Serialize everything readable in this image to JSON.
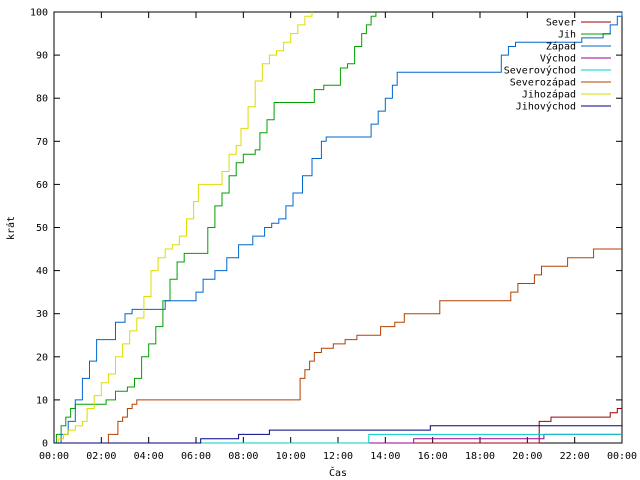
{
  "chart_data": {
    "type": "line",
    "title": "",
    "xlabel": "Čas",
    "ylabel": "krát",
    "xlim": [
      0,
      24
    ],
    "ylim": [
      0,
      100
    ],
    "x_ticks": [
      "00:00",
      "02:00",
      "04:00",
      "06:00",
      "08:00",
      "10:00",
      "12:00",
      "14:00",
      "16:00",
      "18:00",
      "20:00",
      "22:00",
      "00:00"
    ],
    "y_ticks": [
      0,
      10,
      20,
      30,
      40,
      50,
      60,
      70,
      80,
      90,
      100
    ],
    "grid": false,
    "legend_position": "top-right",
    "series": [
      {
        "name": "Sever",
        "color": "#a00000",
        "points": [
          [
            0,
            0
          ],
          [
            20.5,
            0
          ],
          [
            20.5,
            5
          ],
          [
            21,
            5
          ],
          [
            21,
            6
          ],
          [
            23.5,
            6
          ],
          [
            23.5,
            7
          ],
          [
            23.8,
            7
          ],
          [
            23.8,
            8
          ],
          [
            24,
            8
          ]
        ]
      },
      {
        "name": "Jih",
        "color": "#00a000",
        "points": [
          [
            0,
            0
          ],
          [
            0.1,
            2
          ],
          [
            0.3,
            4
          ],
          [
            0.5,
            6
          ],
          [
            0.7,
            8
          ],
          [
            0.9,
            9
          ],
          [
            1.8,
            9
          ],
          [
            2.2,
            10
          ],
          [
            2.6,
            12
          ],
          [
            3.1,
            13
          ],
          [
            3.4,
            15
          ],
          [
            3.7,
            20
          ],
          [
            4.0,
            23
          ],
          [
            4.3,
            27
          ],
          [
            4.6,
            33
          ],
          [
            4.9,
            38
          ],
          [
            5.2,
            42
          ],
          [
            5.5,
            44
          ],
          [
            6.3,
            44
          ],
          [
            6.5,
            50
          ],
          [
            6.8,
            55
          ],
          [
            7.1,
            58
          ],
          [
            7.4,
            62
          ],
          [
            7.7,
            65
          ],
          [
            8.0,
            67
          ],
          [
            8.5,
            68
          ],
          [
            8.7,
            72
          ],
          [
            9.0,
            75
          ],
          [
            9.3,
            79
          ],
          [
            10.8,
            79
          ],
          [
            11.0,
            82
          ],
          [
            11.4,
            83
          ],
          [
            11.8,
            83
          ],
          [
            12.1,
            87
          ],
          [
            12.4,
            88
          ],
          [
            12.7,
            92
          ],
          [
            13.0,
            95
          ],
          [
            13.2,
            97
          ],
          [
            13.4,
            99
          ],
          [
            13.6,
            100
          ]
        ]
      },
      {
        "name": "Západ",
        "color": "#0066cc",
        "points": [
          [
            0,
            0
          ],
          [
            0.3,
            2
          ],
          [
            0.6,
            5
          ],
          [
            0.9,
            10
          ],
          [
            1.2,
            15
          ],
          [
            1.5,
            19
          ],
          [
            1.8,
            24
          ],
          [
            2.3,
            24
          ],
          [
            2.6,
            28
          ],
          [
            3.0,
            30
          ],
          [
            3.3,
            31
          ],
          [
            4.5,
            31
          ],
          [
            4.7,
            33
          ],
          [
            5.8,
            33
          ],
          [
            6.0,
            35
          ],
          [
            6.3,
            38
          ],
          [
            6.8,
            40
          ],
          [
            7.3,
            43
          ],
          [
            7.8,
            46
          ],
          [
            8.4,
            48
          ],
          [
            8.9,
            50
          ],
          [
            9.2,
            51
          ],
          [
            9.5,
            52
          ],
          [
            9.8,
            55
          ],
          [
            10.1,
            58
          ],
          [
            10.5,
            62
          ],
          [
            10.9,
            66
          ],
          [
            11.3,
            70
          ],
          [
            11.5,
            71
          ],
          [
            13.1,
            71
          ],
          [
            13.4,
            74
          ],
          [
            13.7,
            77
          ],
          [
            14.0,
            80
          ],
          [
            14.3,
            83
          ],
          [
            14.5,
            86
          ],
          [
            18.7,
            86
          ],
          [
            18.9,
            90
          ],
          [
            19.2,
            92
          ],
          [
            19.5,
            93
          ],
          [
            22.1,
            93
          ],
          [
            22.3,
            94
          ],
          [
            23.2,
            95
          ],
          [
            23.5,
            97
          ],
          [
            23.8,
            99
          ],
          [
            24.0,
            100
          ]
        ]
      },
      {
        "name": "Východ",
        "color": "#990099",
        "points": [
          [
            0,
            0
          ],
          [
            15.2,
            0
          ],
          [
            15.2,
            1
          ],
          [
            20.7,
            1
          ],
          [
            20.7,
            2
          ],
          [
            24,
            2
          ]
        ]
      },
      {
        "name": "Severovýchod",
        "color": "#00cccc",
        "points": [
          [
            0,
            0
          ],
          [
            13.3,
            0
          ],
          [
            13.3,
            2
          ],
          [
            24,
            2
          ]
        ]
      },
      {
        "name": "Severozápad",
        "color": "#b04000",
        "points": [
          [
            0,
            0
          ],
          [
            2.3,
            0
          ],
          [
            2.3,
            2
          ],
          [
            2.7,
            2
          ],
          [
            2.7,
            5
          ],
          [
            2.9,
            6
          ],
          [
            3.1,
            8
          ],
          [
            3.3,
            9
          ],
          [
            3.5,
            10
          ],
          [
            10.3,
            10
          ],
          [
            10.4,
            15
          ],
          [
            10.6,
            17
          ],
          [
            10.8,
            19
          ],
          [
            11.0,
            21
          ],
          [
            11.3,
            22
          ],
          [
            11.8,
            23
          ],
          [
            12.3,
            24
          ],
          [
            12.8,
            25
          ],
          [
            13.6,
            25
          ],
          [
            13.8,
            27
          ],
          [
            14.4,
            28
          ],
          [
            14.8,
            30
          ],
          [
            16.1,
            30
          ],
          [
            16.3,
            33
          ],
          [
            19.1,
            33
          ],
          [
            19.3,
            35
          ],
          [
            19.6,
            37
          ],
          [
            20.3,
            39
          ],
          [
            20.6,
            41
          ],
          [
            21.4,
            41
          ],
          [
            21.7,
            43
          ],
          [
            22.5,
            43
          ],
          [
            22.8,
            45
          ],
          [
            24,
            45
          ]
        ]
      },
      {
        "name": "Jihozápad",
        "color": "#dddd00",
        "points": [
          [
            0,
            0
          ],
          [
            0.2,
            1
          ],
          [
            0.4,
            2
          ],
          [
            0.6,
            3
          ],
          [
            0.9,
            4
          ],
          [
            1.2,
            5
          ],
          [
            1.4,
            8
          ],
          [
            1.7,
            11
          ],
          [
            2.0,
            14
          ],
          [
            2.3,
            16
          ],
          [
            2.6,
            20
          ],
          [
            2.9,
            23
          ],
          [
            3.2,
            26
          ],
          [
            3.5,
            29
          ],
          [
            3.8,
            34
          ],
          [
            4.1,
            40
          ],
          [
            4.4,
            43
          ],
          [
            4.7,
            45
          ],
          [
            5.0,
            46
          ],
          [
            5.3,
            48
          ],
          [
            5.6,
            52
          ],
          [
            5.9,
            56
          ],
          [
            6.1,
            60
          ],
          [
            6.9,
            60
          ],
          [
            7.1,
            63
          ],
          [
            7.4,
            67
          ],
          [
            7.7,
            69
          ],
          [
            7.9,
            73
          ],
          [
            8.2,
            78
          ],
          [
            8.5,
            84
          ],
          [
            8.8,
            88
          ],
          [
            9.1,
            90
          ],
          [
            9.4,
            91
          ],
          [
            9.7,
            93
          ],
          [
            10.0,
            95
          ],
          [
            10.3,
            97
          ],
          [
            10.6,
            99
          ],
          [
            10.9,
            100
          ]
        ]
      },
      {
        "name": "Jihovýchod",
        "color": "#000080",
        "points": [
          [
            0,
            0
          ],
          [
            6.2,
            0
          ],
          [
            6.2,
            1
          ],
          [
            7.8,
            1
          ],
          [
            7.8,
            2
          ],
          [
            9.1,
            2
          ],
          [
            9.1,
            3
          ],
          [
            15.9,
            3
          ],
          [
            15.9,
            4
          ],
          [
            24,
            4
          ]
        ]
      }
    ]
  }
}
